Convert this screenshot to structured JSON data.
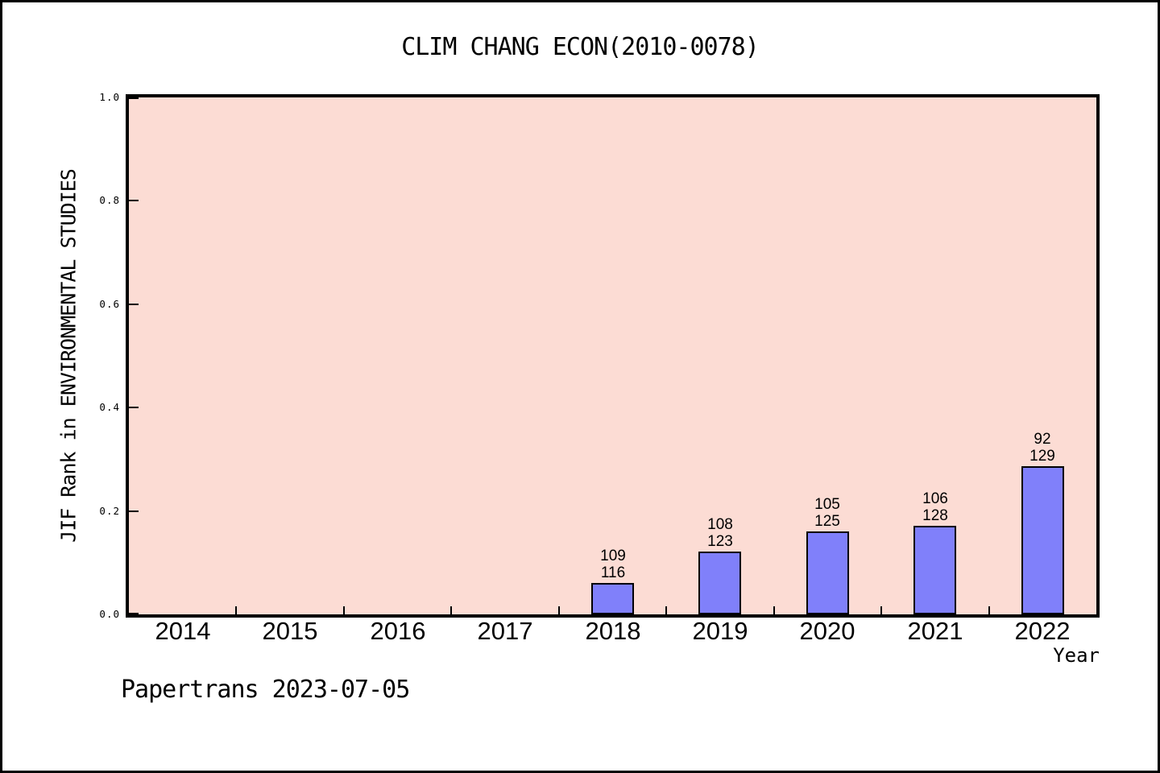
{
  "title": "CLIM CHANG ECON(2010-0078)",
  "footer": "Papertrans 2023-07-05",
  "chart_data": {
    "type": "bar",
    "title": "CLIM CHANG ECON(2010-0078)",
    "xlabel": "Year",
    "ylabel": "JIF Rank in ENVIRONMENTAL STUDIES",
    "ylim": [
      0.0,
      1.0
    ],
    "yticks": [
      "0.0",
      "0.2",
      "0.4",
      "0.6",
      "0.8",
      "1.0"
    ],
    "grid": "off",
    "legend": "none",
    "categories": [
      "2014",
      "2015",
      "2016",
      "2017",
      "2018",
      "2019",
      "2020",
      "2021",
      "2022"
    ],
    "bars": [
      {
        "category": "2018",
        "rank": "109",
        "total": "116",
        "value": 0.0603
      },
      {
        "category": "2019",
        "rank": "108",
        "total": "123",
        "value": 0.122
      },
      {
        "category": "2020",
        "rank": "105",
        "total": "125",
        "value": 0.16
      },
      {
        "category": "2021",
        "rank": "106",
        "total": "128",
        "value": 0.1719
      },
      {
        "category": "2022",
        "rank": "92",
        "total": "129",
        "value": 0.2868
      }
    ],
    "colors": {
      "bar_fill": "#8080fa",
      "bar_edge": "#000000",
      "plot_background": "#fcdcd4",
      "frame": "#000000",
      "text": "#000000"
    }
  }
}
